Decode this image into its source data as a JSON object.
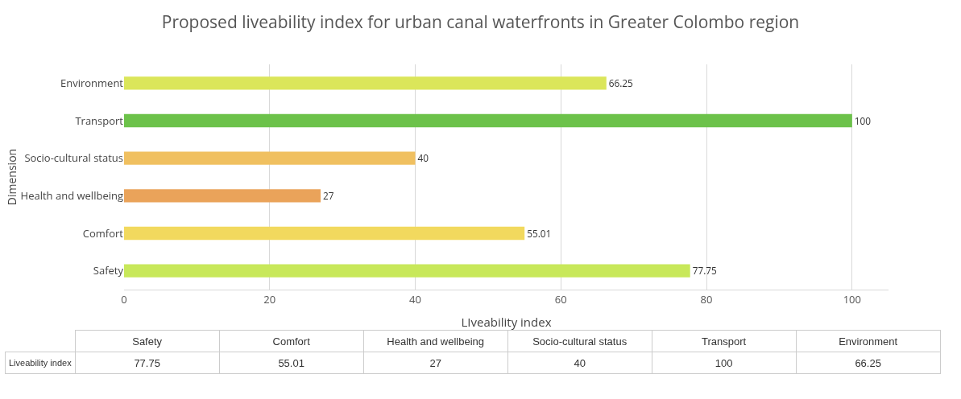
{
  "chart_data": [
    {
      "type": "bar",
      "orientation": "horizontal",
      "title": "Proposed liveability index for urban canal waterfronts in Greater Colombo region",
      "xlabel": "LIveability index",
      "ylabel": "Dimension",
      "categories": [
        "Environment",
        "Transport",
        "Socio-cultural status",
        "Health and wellbeing",
        "Comfort",
        "Safety"
      ],
      "values": [
        66.25,
        100,
        40,
        27,
        55.01,
        77.75
      ],
      "colors": [
        "#dbe65a",
        "#6cc24a",
        "#f0c060",
        "#eaa35a",
        "#f2d95e",
        "#c8e85a"
      ],
      "xlim": [
        0,
        105
      ],
      "xticks": [
        0,
        20,
        40,
        60,
        80,
        100
      ],
      "grid": "x",
      "data_labels": true
    },
    {
      "type": "other",
      "ylabel": "Liveability index",
      "categories": [
        "Safety",
        "Comfort",
        "Health and wellbeing",
        "Socio-cultural status",
        "Transport",
        "Environment"
      ],
      "values": [
        77.75,
        55.01,
        27,
        40,
        100,
        66.25
      ],
      "data_labels": true
    }
  ]
}
